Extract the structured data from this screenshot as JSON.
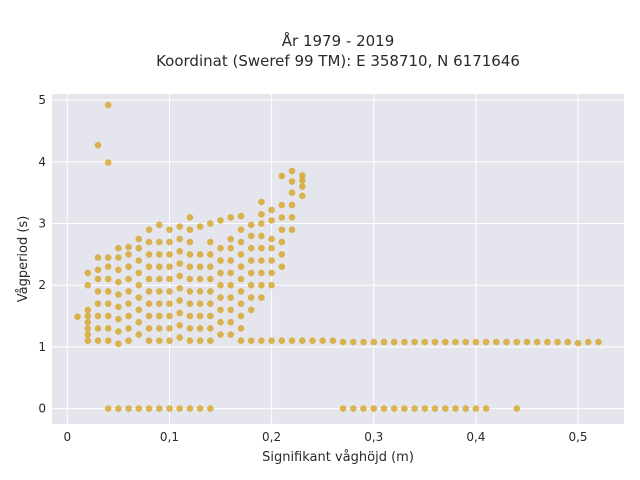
{
  "chart_data": {
    "type": "scatter",
    "title": "År 1979 - 2019",
    "subtitle": "Koordinat (Sweref 99 TM): E 358710, N 6171646",
    "xlabel": "Signifikant våghöjd (m)",
    "ylabel": "Vågperiod (s)",
    "xlim": [
      -0.015,
      0.545
    ],
    "ylim": [
      -0.25,
      5.1
    ],
    "xticks": [
      {
        "v": 0,
        "label": "0"
      },
      {
        "v": 0.1,
        "label": "0,1"
      },
      {
        "v": 0.2,
        "label": "0,2"
      },
      {
        "v": 0.3,
        "label": "0,3"
      },
      {
        "v": 0.4,
        "label": "0,4"
      },
      {
        "v": 0.5,
        "label": "0,5"
      }
    ],
    "yticks": [
      {
        "v": 0,
        "label": "0"
      },
      {
        "v": 1,
        "label": "1"
      },
      {
        "v": 2,
        "label": "2"
      },
      {
        "v": 3,
        "label": "3"
      },
      {
        "v": 4,
        "label": "4"
      },
      {
        "v": 5,
        "label": "5"
      }
    ],
    "grid": true,
    "marker_color": "#D4A017",
    "background_color": "#E5E5EE",
    "series": [
      {
        "points": [
          [
            0.01,
            1.49
          ],
          [
            0.02,
            1.1
          ],
          [
            0.02,
            1.2
          ],
          [
            0.02,
            1.3
          ],
          [
            0.02,
            1.4
          ],
          [
            0.02,
            1.5
          ],
          [
            0.02,
            1.6
          ],
          [
            0.02,
            2.0
          ],
          [
            0.02,
            2.2
          ],
          [
            0.03,
            1.1
          ],
          [
            0.03,
            1.3
          ],
          [
            0.03,
            1.5
          ],
          [
            0.03,
            1.7
          ],
          [
            0.03,
            1.9
          ],
          [
            0.03,
            2.1
          ],
          [
            0.03,
            2.25
          ],
          [
            0.03,
            2.45
          ],
          [
            0.03,
            4.27
          ],
          [
            0.04,
            1.1
          ],
          [
            0.04,
            1.3
          ],
          [
            0.04,
            1.5
          ],
          [
            0.04,
            1.7
          ],
          [
            0.04,
            1.9
          ],
          [
            0.04,
            2.1
          ],
          [
            0.04,
            2.3
          ],
          [
            0.04,
            2.45
          ],
          [
            0.04,
            3.99
          ],
          [
            0.04,
            4.92
          ],
          [
            0.05,
            1.05
          ],
          [
            0.05,
            1.25
          ],
          [
            0.05,
            1.45
          ],
          [
            0.05,
            1.65
          ],
          [
            0.05,
            1.85
          ],
          [
            0.05,
            2.05
          ],
          [
            0.05,
            2.25
          ],
          [
            0.05,
            2.45
          ],
          [
            0.05,
            2.6
          ],
          [
            0.06,
            1.1
          ],
          [
            0.06,
            1.3
          ],
          [
            0.06,
            1.5
          ],
          [
            0.06,
            1.7
          ],
          [
            0.06,
            1.9
          ],
          [
            0.06,
            2.1
          ],
          [
            0.06,
            2.3
          ],
          [
            0.06,
            2.5
          ],
          [
            0.06,
            2.62
          ],
          [
            0.07,
            1.2
          ],
          [
            0.07,
            1.4
          ],
          [
            0.07,
            1.6
          ],
          [
            0.07,
            1.8
          ],
          [
            0.07,
            2.0
          ],
          [
            0.07,
            2.2
          ],
          [
            0.07,
            2.4
          ],
          [
            0.07,
            2.6
          ],
          [
            0.07,
            2.75
          ],
          [
            0.08,
            1.1
          ],
          [
            0.08,
            1.3
          ],
          [
            0.08,
            1.5
          ],
          [
            0.08,
            1.7
          ],
          [
            0.08,
            1.9
          ],
          [
            0.08,
            2.1
          ],
          [
            0.08,
            2.3
          ],
          [
            0.08,
            2.5
          ],
          [
            0.08,
            2.7
          ],
          [
            0.08,
            2.9
          ],
          [
            0.09,
            1.1
          ],
          [
            0.09,
            1.3
          ],
          [
            0.09,
            1.5
          ],
          [
            0.09,
            1.7
          ],
          [
            0.09,
            1.9
          ],
          [
            0.09,
            2.1
          ],
          [
            0.09,
            2.3
          ],
          [
            0.09,
            2.5
          ],
          [
            0.09,
            2.7
          ],
          [
            0.09,
            2.98
          ],
          [
            0.1,
            1.1
          ],
          [
            0.1,
            1.3
          ],
          [
            0.1,
            1.5
          ],
          [
            0.1,
            1.7
          ],
          [
            0.1,
            1.9
          ],
          [
            0.1,
            2.1
          ],
          [
            0.1,
            2.3
          ],
          [
            0.1,
            2.5
          ],
          [
            0.1,
            2.7
          ],
          [
            0.1,
            2.9
          ],
          [
            0.11,
            1.15
          ],
          [
            0.11,
            1.35
          ],
          [
            0.11,
            1.55
          ],
          [
            0.11,
            1.75
          ],
          [
            0.11,
            1.95
          ],
          [
            0.11,
            2.15
          ],
          [
            0.11,
            2.35
          ],
          [
            0.11,
            2.55
          ],
          [
            0.11,
            2.75
          ],
          [
            0.11,
            2.95
          ],
          [
            0.12,
            1.1
          ],
          [
            0.12,
            1.3
          ],
          [
            0.12,
            1.5
          ],
          [
            0.12,
            1.7
          ],
          [
            0.12,
            1.9
          ],
          [
            0.12,
            2.1
          ],
          [
            0.12,
            2.3
          ],
          [
            0.12,
            2.5
          ],
          [
            0.12,
            2.7
          ],
          [
            0.12,
            2.9
          ],
          [
            0.12,
            3.1
          ],
          [
            0.13,
            1.1
          ],
          [
            0.13,
            1.3
          ],
          [
            0.13,
            1.5
          ],
          [
            0.13,
            1.7
          ],
          [
            0.13,
            1.9
          ],
          [
            0.13,
            2.1
          ],
          [
            0.13,
            2.3
          ],
          [
            0.13,
            2.5
          ],
          [
            0.13,
            2.95
          ],
          [
            0.14,
            1.1
          ],
          [
            0.14,
            1.3
          ],
          [
            0.14,
            1.5
          ],
          [
            0.14,
            1.7
          ],
          [
            0.14,
            1.9
          ],
          [
            0.14,
            2.1
          ],
          [
            0.14,
            2.3
          ],
          [
            0.14,
            2.5
          ],
          [
            0.14,
            2.7
          ],
          [
            0.14,
            3.0
          ],
          [
            0.15,
            1.2
          ],
          [
            0.15,
            1.4
          ],
          [
            0.15,
            1.6
          ],
          [
            0.15,
            1.8
          ],
          [
            0.15,
            2.0
          ],
          [
            0.15,
            2.2
          ],
          [
            0.15,
            2.4
          ],
          [
            0.15,
            2.6
          ],
          [
            0.15,
            3.05
          ],
          [
            0.16,
            1.2
          ],
          [
            0.16,
            1.4
          ],
          [
            0.16,
            1.6
          ],
          [
            0.16,
            1.8
          ],
          [
            0.16,
            2.0
          ],
          [
            0.16,
            2.2
          ],
          [
            0.16,
            2.4
          ],
          [
            0.16,
            2.6
          ],
          [
            0.16,
            2.75
          ],
          [
            0.16,
            3.1
          ],
          [
            0.17,
            1.1
          ],
          [
            0.17,
            1.3
          ],
          [
            0.17,
            1.5
          ],
          [
            0.17,
            1.7
          ],
          [
            0.17,
            1.9
          ],
          [
            0.17,
            2.1
          ],
          [
            0.17,
            2.3
          ],
          [
            0.17,
            2.5
          ],
          [
            0.17,
            2.7
          ],
          [
            0.17,
            2.9
          ],
          [
            0.17,
            3.12
          ],
          [
            0.18,
            1.1
          ],
          [
            0.18,
            1.6
          ],
          [
            0.18,
            1.8
          ],
          [
            0.18,
            2.0
          ],
          [
            0.18,
            2.2
          ],
          [
            0.18,
            2.4
          ],
          [
            0.18,
            2.6
          ],
          [
            0.18,
            2.8
          ],
          [
            0.18,
            2.98
          ],
          [
            0.19,
            1.1
          ],
          [
            0.19,
            1.8
          ],
          [
            0.19,
            2.0
          ],
          [
            0.19,
            2.2
          ],
          [
            0.19,
            2.4
          ],
          [
            0.19,
            2.6
          ],
          [
            0.19,
            2.8
          ],
          [
            0.19,
            3.0
          ],
          [
            0.19,
            3.15
          ],
          [
            0.19,
            3.35
          ],
          [
            0.2,
            1.1
          ],
          [
            0.2,
            2.0
          ],
          [
            0.2,
            2.2
          ],
          [
            0.2,
            2.4
          ],
          [
            0.2,
            2.6
          ],
          [
            0.2,
            2.75
          ],
          [
            0.2,
            3.05
          ],
          [
            0.2,
            3.22
          ],
          [
            0.21,
            1.1
          ],
          [
            0.21,
            2.3
          ],
          [
            0.21,
            2.5
          ],
          [
            0.21,
            2.7
          ],
          [
            0.21,
            2.9
          ],
          [
            0.21,
            3.1
          ],
          [
            0.21,
            3.3
          ],
          [
            0.21,
            3.77
          ],
          [
            0.22,
            1.1
          ],
          [
            0.22,
            2.9
          ],
          [
            0.22,
            3.1
          ],
          [
            0.22,
            3.3
          ],
          [
            0.22,
            3.5
          ],
          [
            0.22,
            3.68
          ],
          [
            0.22,
            3.85
          ],
          [
            0.23,
            1.1
          ],
          [
            0.23,
            3.45
          ],
          [
            0.23,
            3.6
          ],
          [
            0.23,
            3.7
          ],
          [
            0.23,
            3.78
          ],
          [
            0.24,
            1.1
          ],
          [
            0.25,
            1.1
          ],
          [
            0.26,
            1.1
          ],
          [
            0.27,
            1.08
          ],
          [
            0.28,
            1.08
          ],
          [
            0.29,
            1.08
          ],
          [
            0.3,
            1.08
          ],
          [
            0.31,
            1.08
          ],
          [
            0.32,
            1.08
          ],
          [
            0.33,
            1.08
          ],
          [
            0.34,
            1.08
          ],
          [
            0.35,
            1.08
          ],
          [
            0.36,
            1.08
          ],
          [
            0.37,
            1.08
          ],
          [
            0.38,
            1.08
          ],
          [
            0.39,
            1.08
          ],
          [
            0.4,
            1.08
          ],
          [
            0.41,
            1.08
          ],
          [
            0.42,
            1.08
          ],
          [
            0.43,
            1.08
          ],
          [
            0.44,
            1.08
          ],
          [
            0.45,
            1.08
          ],
          [
            0.46,
            1.08
          ],
          [
            0.47,
            1.08
          ],
          [
            0.48,
            1.08
          ],
          [
            0.49,
            1.08
          ],
          [
            0.5,
            1.06
          ],
          [
            0.51,
            1.08
          ],
          [
            0.52,
            1.08
          ],
          [
            0.04,
            0
          ],
          [
            0.05,
            0
          ],
          [
            0.06,
            0
          ],
          [
            0.07,
            0
          ],
          [
            0.08,
            0
          ],
          [
            0.09,
            0
          ],
          [
            0.1,
            0
          ],
          [
            0.11,
            0
          ],
          [
            0.12,
            0
          ],
          [
            0.13,
            0
          ],
          [
            0.14,
            0
          ],
          [
            0.27,
            0
          ],
          [
            0.28,
            0
          ],
          [
            0.29,
            0
          ],
          [
            0.3,
            0
          ],
          [
            0.31,
            0
          ],
          [
            0.32,
            0
          ],
          [
            0.33,
            0
          ],
          [
            0.34,
            0
          ],
          [
            0.35,
            0
          ],
          [
            0.36,
            0
          ],
          [
            0.37,
            0
          ],
          [
            0.38,
            0
          ],
          [
            0.39,
            0
          ],
          [
            0.4,
            0
          ],
          [
            0.41,
            0
          ],
          [
            0.44,
            0
          ]
        ]
      }
    ]
  }
}
